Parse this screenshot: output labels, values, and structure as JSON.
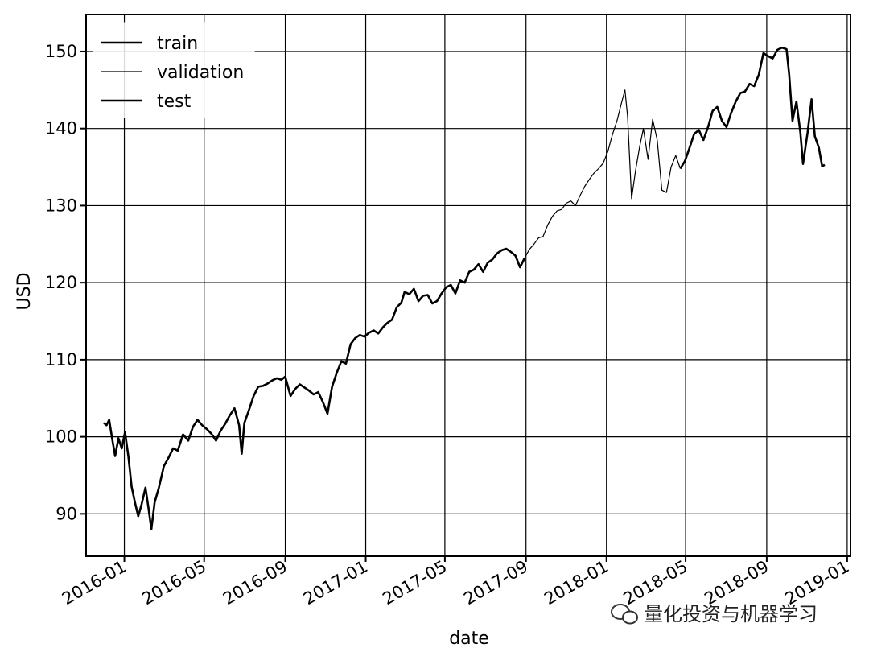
{
  "chart_data": {
    "type": "line",
    "title": "",
    "xlabel": "date",
    "ylabel": "USD",
    "xlim": [
      "2015-11-04",
      "2019-01-06"
    ],
    "ylim": [
      84.5,
      154.8
    ],
    "grid": true,
    "legend_position": "top-left",
    "x_ticks": [
      "2016-01",
      "2016-05",
      "2016-09",
      "2017-01",
      "2017-05",
      "2017-09",
      "2018-01",
      "2018-05",
      "2018-09",
      "2019-01"
    ],
    "y_ticks": [
      90,
      100,
      110,
      120,
      130,
      140,
      150
    ],
    "series": [
      {
        "name": "train",
        "color": "#000000",
        "points": [
          [
            "2015-12-01",
            101.8
          ],
          [
            "2015-12-05",
            101.5
          ],
          [
            "2015-12-09",
            102.2
          ],
          [
            "2015-12-14",
            99.5
          ],
          [
            "2015-12-18",
            97.5
          ],
          [
            "2015-12-23",
            99.8
          ],
          [
            "2015-12-28",
            98.5
          ],
          [
            "2016-01-02",
            100.6
          ],
          [
            "2016-01-07",
            97.5
          ],
          [
            "2016-01-12",
            93.5
          ],
          [
            "2016-01-17",
            91.5
          ],
          [
            "2016-01-22",
            89.7
          ],
          [
            "2016-01-27",
            91.2
          ],
          [
            "2016-02-02",
            93.4
          ],
          [
            "2016-02-07",
            90.5
          ],
          [
            "2016-02-11",
            88.0
          ],
          [
            "2016-02-16",
            91.5
          ],
          [
            "2016-02-22",
            93.3
          ],
          [
            "2016-03-01",
            96.2
          ],
          [
            "2016-03-08",
            97.3
          ],
          [
            "2016-03-15",
            98.5
          ],
          [
            "2016-03-22",
            98.2
          ],
          [
            "2016-03-30",
            100.3
          ],
          [
            "2016-04-07",
            99.5
          ],
          [
            "2016-04-14",
            101.3
          ],
          [
            "2016-04-21",
            102.2
          ],
          [
            "2016-04-28",
            101.5
          ],
          [
            "2016-05-05",
            101.0
          ],
          [
            "2016-05-12",
            100.4
          ],
          [
            "2016-05-19",
            99.5
          ],
          [
            "2016-05-26",
            100.8
          ],
          [
            "2016-06-02",
            101.7
          ],
          [
            "2016-06-09",
            102.8
          ],
          [
            "2016-06-16",
            103.7
          ],
          [
            "2016-06-23",
            101.5
          ],
          [
            "2016-06-27",
            97.8
          ],
          [
            "2016-07-01",
            101.8
          ],
          [
            "2016-07-08",
            103.5
          ],
          [
            "2016-07-15",
            105.3
          ],
          [
            "2016-07-22",
            106.5
          ],
          [
            "2016-07-29",
            106.6
          ],
          [
            "2016-08-05",
            106.9
          ],
          [
            "2016-08-12",
            107.3
          ],
          [
            "2016-08-19",
            107.6
          ],
          [
            "2016-08-26",
            107.4
          ],
          [
            "2016-09-01",
            107.8
          ],
          [
            "2016-09-09",
            105.3
          ],
          [
            "2016-09-16",
            106.2
          ],
          [
            "2016-09-23",
            106.8
          ],
          [
            "2016-09-30",
            106.4
          ],
          [
            "2016-10-07",
            106.0
          ],
          [
            "2016-10-14",
            105.5
          ],
          [
            "2016-10-21",
            105.8
          ],
          [
            "2016-10-28",
            104.5
          ],
          [
            "2016-11-04",
            103.0
          ],
          [
            "2016-11-11",
            106.5
          ],
          [
            "2016-11-18",
            108.3
          ],
          [
            "2016-11-25",
            109.8
          ],
          [
            "2016-12-02",
            109.5
          ],
          [
            "2016-12-09",
            112.0
          ],
          [
            "2016-12-16",
            112.8
          ],
          [
            "2016-12-23",
            113.2
          ],
          [
            "2016-12-30",
            113.0
          ],
          [
            "2017-01-06",
            113.5
          ],
          [
            "2017-01-13",
            113.8
          ],
          [
            "2017-01-20",
            113.4
          ],
          [
            "2017-01-27",
            114.2
          ],
          [
            "2017-02-03",
            114.8
          ],
          [
            "2017-02-10",
            115.2
          ],
          [
            "2017-02-17",
            116.8
          ],
          [
            "2017-02-24",
            117.4
          ],
          [
            "2017-03-01",
            118.8
          ],
          [
            "2017-03-08",
            118.5
          ],
          [
            "2017-03-15",
            119.2
          ],
          [
            "2017-03-22",
            117.6
          ],
          [
            "2017-03-29",
            118.3
          ],
          [
            "2017-04-05",
            118.4
          ],
          [
            "2017-04-12",
            117.3
          ],
          [
            "2017-04-19",
            117.6
          ],
          [
            "2017-04-26",
            118.6
          ],
          [
            "2017-05-03",
            119.4
          ],
          [
            "2017-05-10",
            119.7
          ],
          [
            "2017-05-17",
            118.6
          ],
          [
            "2017-05-24",
            120.3
          ],
          [
            "2017-05-31",
            120.0
          ],
          [
            "2017-06-07",
            121.4
          ],
          [
            "2017-06-14",
            121.7
          ],
          [
            "2017-06-21",
            122.4
          ],
          [
            "2017-06-28",
            121.4
          ],
          [
            "2017-07-05",
            122.6
          ],
          [
            "2017-07-12",
            123.0
          ],
          [
            "2017-07-19",
            123.8
          ],
          [
            "2017-07-26",
            124.2
          ],
          [
            "2017-08-02",
            124.4
          ],
          [
            "2017-08-09",
            124.0
          ],
          [
            "2017-08-16",
            123.5
          ],
          [
            "2017-08-23",
            122.0
          ],
          [
            "2017-08-30",
            123.2
          ]
        ]
      },
      {
        "name": "validation",
        "color": "#000000",
        "points": [
          [
            "2017-08-30",
            123.2
          ],
          [
            "2017-09-06",
            124.3
          ],
          [
            "2017-09-13",
            125.0
          ],
          [
            "2017-09-20",
            125.8
          ],
          [
            "2017-09-27",
            126.0
          ],
          [
            "2017-10-04",
            127.5
          ],
          [
            "2017-10-11",
            128.6
          ],
          [
            "2017-10-18",
            129.3
          ],
          [
            "2017-10-25",
            129.5
          ],
          [
            "2017-11-01",
            130.3
          ],
          [
            "2017-11-08",
            130.6
          ],
          [
            "2017-11-15",
            130.0
          ],
          [
            "2017-11-22",
            131.3
          ],
          [
            "2017-11-29",
            132.5
          ],
          [
            "2017-12-06",
            133.4
          ],
          [
            "2017-12-13",
            134.2
          ],
          [
            "2017-12-20",
            134.8
          ],
          [
            "2017-12-27",
            135.5
          ],
          [
            "2018-01-03",
            137.0
          ],
          [
            "2018-01-10",
            139.2
          ],
          [
            "2018-01-17",
            141.0
          ],
          [
            "2018-01-24",
            143.4
          ],
          [
            "2018-01-29",
            145.0
          ],
          [
            "2018-02-02",
            141.5
          ],
          [
            "2018-02-08",
            130.9
          ],
          [
            "2018-02-14",
            134.5
          ],
          [
            "2018-02-20",
            137.5
          ],
          [
            "2018-02-26",
            140.0
          ],
          [
            "2018-03-05",
            136.0
          ],
          [
            "2018-03-12",
            141.2
          ],
          [
            "2018-03-19",
            138.5
          ],
          [
            "2018-03-26",
            132.0
          ],
          [
            "2018-04-02",
            131.7
          ],
          [
            "2018-04-09",
            135.0
          ],
          [
            "2018-04-16",
            136.5
          ],
          [
            "2018-04-23",
            134.8
          ]
        ]
      },
      {
        "name": "test",
        "color": "#000000",
        "points": [
          [
            "2018-04-23",
            134.8
          ],
          [
            "2018-04-30",
            135.8
          ],
          [
            "2018-05-07",
            137.5
          ],
          [
            "2018-05-14",
            139.3
          ],
          [
            "2018-05-21",
            139.8
          ],
          [
            "2018-05-28",
            138.5
          ],
          [
            "2018-06-04",
            140.2
          ],
          [
            "2018-06-11",
            142.3
          ],
          [
            "2018-06-18",
            142.8
          ],
          [
            "2018-06-25",
            141.0
          ],
          [
            "2018-07-02",
            140.2
          ],
          [
            "2018-07-09",
            142.0
          ],
          [
            "2018-07-16",
            143.5
          ],
          [
            "2018-07-23",
            144.6
          ],
          [
            "2018-07-30",
            144.8
          ],
          [
            "2018-08-06",
            145.8
          ],
          [
            "2018-08-13",
            145.5
          ],
          [
            "2018-08-20",
            147.0
          ],
          [
            "2018-08-27",
            149.8
          ],
          [
            "2018-09-03",
            149.4
          ],
          [
            "2018-09-10",
            149.1
          ],
          [
            "2018-09-17",
            150.2
          ],
          [
            "2018-09-24",
            150.5
          ],
          [
            "2018-10-01",
            150.3
          ],
          [
            "2018-10-05",
            147.0
          ],
          [
            "2018-10-10",
            141.0
          ],
          [
            "2018-10-16",
            143.5
          ],
          [
            "2018-10-22",
            139.5
          ],
          [
            "2018-10-26",
            135.4
          ],
          [
            "2018-11-02",
            139.5
          ],
          [
            "2018-11-08",
            143.8
          ],
          [
            "2018-11-13",
            139.0
          ],
          [
            "2018-11-19",
            137.5
          ],
          [
            "2018-11-24",
            135.1
          ],
          [
            "2018-11-28",
            135.3
          ]
        ]
      }
    ]
  },
  "watermark": {
    "text": "量化投资与机器学习",
    "icon": "wechat-icon"
  }
}
